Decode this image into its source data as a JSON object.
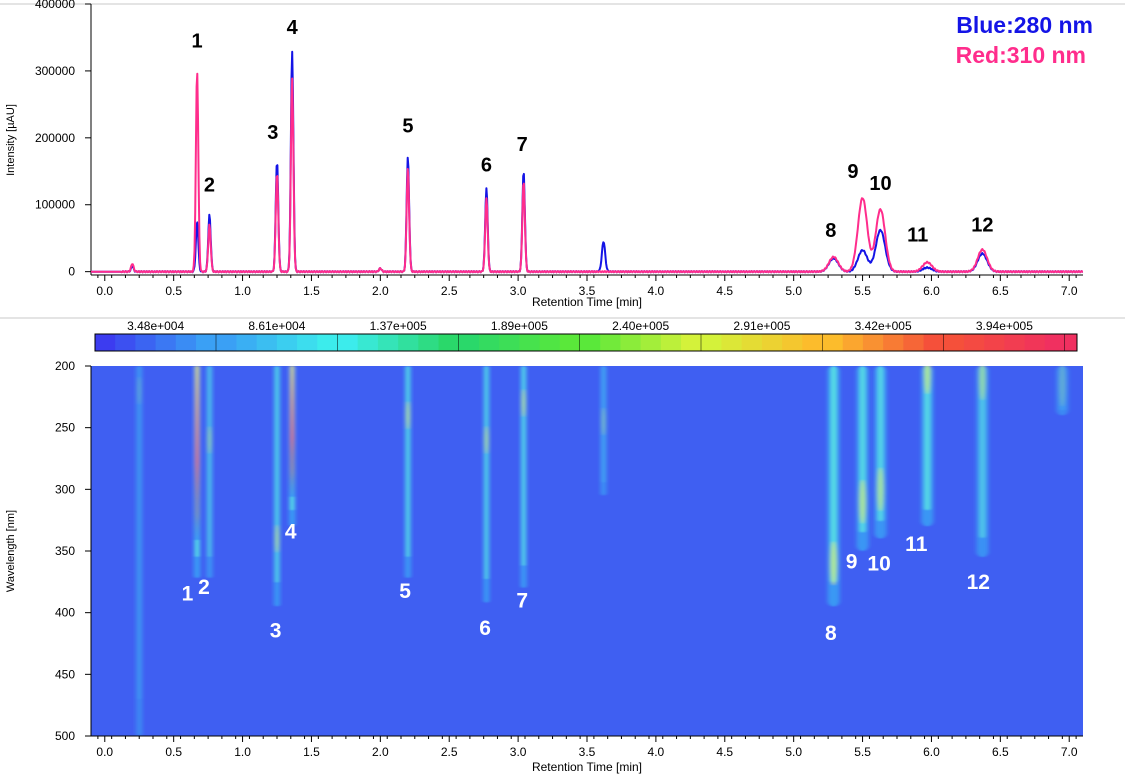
{
  "legend": {
    "blue_label": "Blue",
    "blue_sep": ":",
    "blue_value": "280 nm",
    "red_label": "Red",
    "red_sep": ":",
    "red_value": "310 nm"
  },
  "colors": {
    "blue_trace": "#1414e6",
    "red_trace": "#ff2d8c",
    "heatmap_background": "#3f5ff2",
    "peak_label_white": "#ffffff",
    "peak_label_black": "#000000"
  },
  "chart_data": [
    {
      "type": "line",
      "title": "",
      "xlabel": "Retention Time [min]",
      "ylabel": "Intensity [µAU]",
      "xlim": [
        -0.1,
        7.1
      ],
      "ylim": [
        -5000,
        400000
      ],
      "x_ticks": [
        "0.0",
        "0.5",
        "1.0",
        "1.5",
        "2.0",
        "2.5",
        "3.0",
        "3.5",
        "4.0",
        "4.5",
        "5.0",
        "5.5",
        "6.0",
        "6.5",
        "7.0"
      ],
      "y_ticks": [
        "0",
        "100000",
        "200000",
        "300000",
        "400000"
      ],
      "grid": false,
      "legend_position": "top-right",
      "series": [
        {
          "name": "Blue:280 nm",
          "color": "#1414e6",
          "peaks": [
            {
              "rt": 0.2,
              "height": 8000
            },
            {
              "rt": 0.67,
              "height": 75000
            },
            {
              "rt": 0.76,
              "height": 85000
            },
            {
              "rt": 1.25,
              "height": 165000
            },
            {
              "rt": 1.36,
              "height": 330000
            },
            {
              "rt": 2.0,
              "height": 5000
            },
            {
              "rt": 2.2,
              "height": 172000
            },
            {
              "rt": 2.77,
              "height": 125000
            },
            {
              "rt": 3.04,
              "height": 150000
            },
            {
              "rt": 3.62,
              "height": 45000
            },
            {
              "rt": 5.29,
              "height": 20000
            },
            {
              "rt": 5.5,
              "height": 32000
            },
            {
              "rt": 5.63,
              "height": 62000
            },
            {
              "rt": 5.97,
              "height": 6000
            },
            {
              "rt": 6.37,
              "height": 27000
            }
          ]
        },
        {
          "name": "Red:310 nm",
          "color": "#ff2d8c",
          "peaks": [
            {
              "rt": 0.2,
              "height": 12000
            },
            {
              "rt": 0.67,
              "height": 300000
            },
            {
              "rt": 0.76,
              "height": 70000
            },
            {
              "rt": 1.25,
              "height": 148000
            },
            {
              "rt": 1.36,
              "height": 290000
            },
            {
              "rt": 2.0,
              "height": 5000
            },
            {
              "rt": 2.2,
              "height": 155000
            },
            {
              "rt": 2.77,
              "height": 110000
            },
            {
              "rt": 3.04,
              "height": 135000
            },
            {
              "rt": 3.62,
              "height": 0
            },
            {
              "rt": 5.29,
              "height": 22000
            },
            {
              "rt": 5.5,
              "height": 110000
            },
            {
              "rt": 5.63,
              "height": 93000
            },
            {
              "rt": 5.97,
              "height": 14000
            },
            {
              "rt": 6.37,
              "height": 33000
            }
          ]
        }
      ],
      "peak_labels": [
        {
          "text": "1",
          "x": 0.67,
          "y": 335000
        },
        {
          "text": "2",
          "x": 0.76,
          "y": 120000
        },
        {
          "text": "3",
          "x": 1.22,
          "y": 198000
        },
        {
          "text": "4",
          "x": 1.36,
          "y": 355000
        },
        {
          "text": "5",
          "x": 2.2,
          "y": 208000
        },
        {
          "text": "6",
          "x": 2.77,
          "y": 150000
        },
        {
          "text": "7",
          "x": 3.03,
          "y": 180000
        },
        {
          "text": "8",
          "x": 5.27,
          "y": 52000
        },
        {
          "text": "9",
          "x": 5.43,
          "y": 140000
        },
        {
          "text": "10",
          "x": 5.63,
          "y": 122000
        },
        {
          "text": "11",
          "x": 5.9,
          "y": 45000
        },
        {
          "text": "12",
          "x": 6.37,
          "y": 60000
        }
      ]
    },
    {
      "type": "heatmap",
      "title": "",
      "xlabel": "Retention Time [min]",
      "ylabel": "Wavelength [nm]",
      "xlim": [
        -0.1,
        7.1
      ],
      "ylim": [
        200,
        500
      ],
      "y_direction": "top-to-bottom increasing",
      "x_ticks": [
        "0.0",
        "0.5",
        "1.0",
        "1.5",
        "2.0",
        "2.5",
        "3.0",
        "3.5",
        "4.0",
        "4.5",
        "5.0",
        "5.5",
        "6.0",
        "6.5",
        "7.0"
      ],
      "y_ticks": [
        "200",
        "250",
        "300",
        "350",
        "400",
        "450",
        "500"
      ],
      "colorbar": {
        "labels": [
          "3.48e+004",
          "8.61e+004",
          "1.37e+005",
          "1.89e+005",
          "2.40e+005",
          "2.91e+005",
          "3.42e+005",
          "3.94e+005"
        ],
        "colors": [
          "#3c3cf0",
          "#3aa0f5",
          "#3cecec",
          "#2ad86a",
          "#5ae83a",
          "#d4f23a",
          "#fcbc2c",
          "#f5503a",
          "#f03060"
        ]
      },
      "bands": [
        {
          "rt": 0.25,
          "wl_min": 200,
          "wl_max": 500,
          "peak_wl": 220,
          "intensity": 0.25,
          "hot": false
        },
        {
          "rt": 0.67,
          "wl_min": 200,
          "wl_max": 372,
          "peak_wl": 320,
          "intensity": 1.0,
          "hot": true
        },
        {
          "rt": 0.76,
          "wl_min": 200,
          "wl_max": 372,
          "peak_wl": 260,
          "intensity": 0.6,
          "hot": false
        },
        {
          "rt": 1.25,
          "wl_min": 200,
          "wl_max": 395,
          "peak_wl": 340,
          "intensity": 0.8,
          "hot": false
        },
        {
          "rt": 1.36,
          "wl_min": 200,
          "wl_max": 330,
          "peak_wl": 285,
          "intensity": 1.0,
          "hot": true
        },
        {
          "rt": 2.2,
          "wl_min": 200,
          "wl_max": 372,
          "peak_wl": 240,
          "intensity": 0.85,
          "hot": false
        },
        {
          "rt": 2.77,
          "wl_min": 200,
          "wl_max": 392,
          "peak_wl": 260,
          "intensity": 0.8,
          "hot": false
        },
        {
          "rt": 3.04,
          "wl_min": 200,
          "wl_max": 380,
          "peak_wl": 230,
          "intensity": 0.85,
          "hot": false
        },
        {
          "rt": 3.62,
          "wl_min": 200,
          "wl_max": 305,
          "peak_wl": 245,
          "intensity": 0.45,
          "hot": false
        },
        {
          "rt": 5.29,
          "wl_min": 200,
          "wl_max": 395,
          "peak_wl": 360,
          "intensity": 0.8,
          "hot": false
        },
        {
          "rt": 5.5,
          "wl_min": 200,
          "wl_max": 350,
          "peak_wl": 310,
          "intensity": 0.75,
          "hot": false
        },
        {
          "rt": 5.63,
          "wl_min": 200,
          "wl_max": 340,
          "peak_wl": 300,
          "intensity": 0.7,
          "hot": false
        },
        {
          "rt": 5.97,
          "wl_min": 200,
          "wl_max": 330,
          "peak_wl": 205,
          "intensity": 0.75,
          "hot": false
        },
        {
          "rt": 6.37,
          "wl_min": 200,
          "wl_max": 355,
          "peak_wl": 210,
          "intensity": 0.55,
          "hot": false
        },
        {
          "rt": 6.95,
          "wl_min": 200,
          "wl_max": 240,
          "peak_wl": 215,
          "intensity": 0.25,
          "hot": false
        }
      ],
      "peak_labels": [
        {
          "text": "1",
          "x": 0.6,
          "y": 390
        },
        {
          "text": "2",
          "x": 0.72,
          "y": 385
        },
        {
          "text": "3",
          "x": 1.24,
          "y": 420
        },
        {
          "text": "4",
          "x": 1.35,
          "y": 340
        },
        {
          "text": "5",
          "x": 2.18,
          "y": 388
        },
        {
          "text": "6",
          "x": 2.76,
          "y": 418
        },
        {
          "text": "7",
          "x": 3.03,
          "y": 396
        },
        {
          "text": "8",
          "x": 5.27,
          "y": 422
        },
        {
          "text": "9",
          "x": 5.42,
          "y": 364
        },
        {
          "text": "10",
          "x": 5.62,
          "y": 366
        },
        {
          "text": "11",
          "x": 5.89,
          "y": 350
        },
        {
          "text": "12",
          "x": 6.34,
          "y": 381
        }
      ]
    }
  ]
}
